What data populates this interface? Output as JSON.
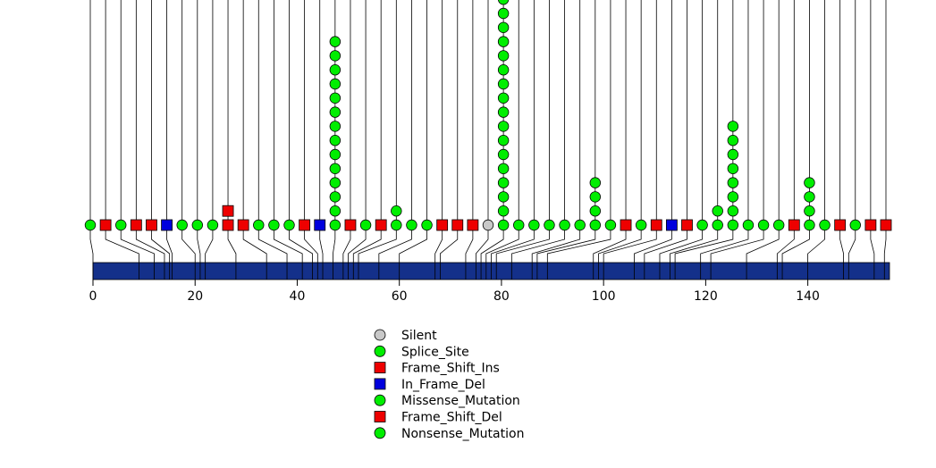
{
  "chart_data": {
    "type": "lollipop",
    "title": "",
    "xlabel": "",
    "ylabel": "",
    "xlim": [
      0,
      156
    ],
    "xticks": [
      0,
      20,
      40,
      60,
      80,
      100,
      120,
      140
    ],
    "xtick_labels": [
      "0",
      "20",
      "40",
      "60",
      "80",
      "100",
      "120",
      "140"
    ],
    "protein_length": 156,
    "protein_color": "#14308a",
    "mutation_types": [
      {
        "name": "Silent",
        "shape": "circle",
        "color": "#c8c8c8"
      },
      {
        "name": "Splice_Site",
        "shape": "circle",
        "color": "#00ee00"
      },
      {
        "name": "Frame_Shift_Ins",
        "shape": "square",
        "color": "#ee0000"
      },
      {
        "name": "In_Frame_Del",
        "shape": "square",
        "color": "#0000dd"
      },
      {
        "name": "Missense_Mutation",
        "shape": "circle",
        "color": "#00ee00"
      },
      {
        "name": "Frame_Shift_Del",
        "shape": "square",
        "color": "#ee0000"
      },
      {
        "name": "Nonsense_Mutation",
        "shape": "circle",
        "color": "#00ee00"
      }
    ],
    "legend": [
      "Silent",
      "Splice_Site",
      "Frame_Shift_Ins",
      "In_Frame_Del",
      "Missense_Mutation",
      "Frame_Shift_Del",
      "Nonsense_Mutation"
    ],
    "legend_position": "bottom-center",
    "mutations": [
      {
        "pos": 0,
        "stack": [
          "Missense_Mutation"
        ]
      },
      {
        "pos": 9,
        "stack": [
          "Frame_Shift_Ins"
        ]
      },
      {
        "pos": 12,
        "stack": [
          "Missense_Mutation"
        ]
      },
      {
        "pos": 14,
        "stack": [
          "Frame_Shift_Del"
        ]
      },
      {
        "pos": 15,
        "stack": [
          "Frame_Shift_Del"
        ]
      },
      {
        "pos": 15.5,
        "stack": [
          "In_Frame_Del"
        ]
      },
      {
        "pos": 20,
        "stack": [
          "Missense_Mutation"
        ]
      },
      {
        "pos": 21,
        "stack": [
          "Missense_Mutation"
        ]
      },
      {
        "pos": 22,
        "stack": [
          "Missense_Mutation"
        ]
      },
      {
        "pos": 28,
        "stack": [
          "Frame_Shift_Del",
          "Frame_Shift_Ins"
        ]
      },
      {
        "pos": 34,
        "stack": [
          "Frame_Shift_Del"
        ]
      },
      {
        "pos": 38,
        "stack": [
          "Missense_Mutation"
        ]
      },
      {
        "pos": 41,
        "stack": [
          "Missense_Mutation"
        ]
      },
      {
        "pos": 43,
        "stack": [
          "Missense_Mutation"
        ]
      },
      {
        "pos": 44,
        "stack": [
          "Frame_Shift_Del"
        ]
      },
      {
        "pos": 45,
        "stack": [
          "In_Frame_Del"
        ]
      },
      {
        "pos": 47,
        "stack": [
          "Missense_Mutation",
          "Missense_Mutation",
          "Missense_Mutation",
          "Missense_Mutation",
          "Missense_Mutation",
          "Missense_Mutation",
          "Missense_Mutation",
          "Missense_Mutation",
          "Missense_Mutation",
          "Missense_Mutation",
          "Missense_Mutation",
          "Missense_Mutation",
          "Missense_Mutation",
          "Missense_Mutation"
        ]
      },
      {
        "pos": 49,
        "stack": [
          "Frame_Shift_Del"
        ]
      },
      {
        "pos": 50,
        "stack": [
          "Missense_Mutation"
        ]
      },
      {
        "pos": 51,
        "stack": [
          "Frame_Shift_Del"
        ]
      },
      {
        "pos": 52,
        "stack": [
          "Missense_Mutation",
          "Missense_Mutation"
        ]
      },
      {
        "pos": 56,
        "stack": [
          "Missense_Mutation"
        ]
      },
      {
        "pos": 60,
        "stack": [
          "Missense_Mutation"
        ]
      },
      {
        "pos": 67,
        "stack": [
          "Frame_Shift_Del"
        ]
      },
      {
        "pos": 68,
        "stack": [
          "Frame_Shift_Del"
        ]
      },
      {
        "pos": 73,
        "stack": [
          "Frame_Shift_Del"
        ]
      },
      {
        "pos": 75,
        "stack": [
          "Silent"
        ]
      },
      {
        "pos": 76,
        "stack": [
          "Missense_Mutation",
          "Missense_Mutation",
          "Missense_Mutation",
          "Missense_Mutation",
          "Missense_Mutation",
          "Missense_Mutation",
          "Missense_Mutation",
          "Missense_Mutation",
          "Missense_Mutation",
          "Missense_Mutation",
          "Missense_Mutation",
          "Missense_Mutation",
          "Missense_Mutation",
          "Missense_Mutation",
          "Missense_Mutation",
          "Missense_Mutation",
          "Missense_Mutation"
        ]
      },
      {
        "pos": 77,
        "stack": [
          "Missense_Mutation"
        ]
      },
      {
        "pos": 78,
        "stack": [
          "Missense_Mutation"
        ]
      },
      {
        "pos": 79,
        "stack": [
          "Missense_Mutation"
        ]
      },
      {
        "pos": 82,
        "stack": [
          "Missense_Mutation"
        ]
      },
      {
        "pos": 86,
        "stack": [
          "Missense_Mutation"
        ]
      },
      {
        "pos": 87,
        "stack": [
          "Missense_Mutation",
          "Missense_Mutation",
          "Missense_Mutation",
          "Missense_Mutation"
        ]
      },
      {
        "pos": 89,
        "stack": [
          "Missense_Mutation"
        ]
      },
      {
        "pos": 98,
        "stack": [
          "Frame_Shift_Del"
        ]
      },
      {
        "pos": 99,
        "stack": [
          "Missense_Mutation"
        ]
      },
      {
        "pos": 100,
        "stack": [
          "Frame_Shift_Del"
        ]
      },
      {
        "pos": 106,
        "stack": [
          "In_Frame_Del"
        ]
      },
      {
        "pos": 108,
        "stack": [
          "Frame_Shift_Del"
        ]
      },
      {
        "pos": 111,
        "stack": [
          "Missense_Mutation"
        ]
      },
      {
        "pos": 113,
        "stack": [
          "Missense_Mutation",
          "Missense_Mutation"
        ]
      },
      {
        "pos": 114,
        "stack": [
          "Missense_Mutation",
          "Missense_Mutation",
          "Missense_Mutation",
          "Missense_Mutation",
          "Missense_Mutation",
          "Missense_Mutation",
          "Missense_Mutation",
          "Missense_Mutation"
        ]
      },
      {
        "pos": 119,
        "stack": [
          "Missense_Mutation"
        ]
      },
      {
        "pos": 121,
        "stack": [
          "Missense_Mutation"
        ]
      },
      {
        "pos": 128,
        "stack": [
          "Missense_Mutation"
        ]
      },
      {
        "pos": 134,
        "stack": [
          "Frame_Shift_Del"
        ]
      },
      {
        "pos": 135,
        "stack": [
          "Missense_Mutation",
          "Missense_Mutation",
          "Missense_Mutation",
          "Missense_Mutation"
        ]
      },
      {
        "pos": 140,
        "stack": [
          "Missense_Mutation"
        ]
      },
      {
        "pos": 147,
        "stack": [
          "Frame_Shift_Del"
        ]
      },
      {
        "pos": 148,
        "stack": [
          "Missense_Mutation"
        ]
      },
      {
        "pos": 153,
        "stack": [
          "Frame_Shift_Del"
        ]
      },
      {
        "pos": 155,
        "stack": [
          "Frame_Shift_Del"
        ]
      }
    ]
  }
}
